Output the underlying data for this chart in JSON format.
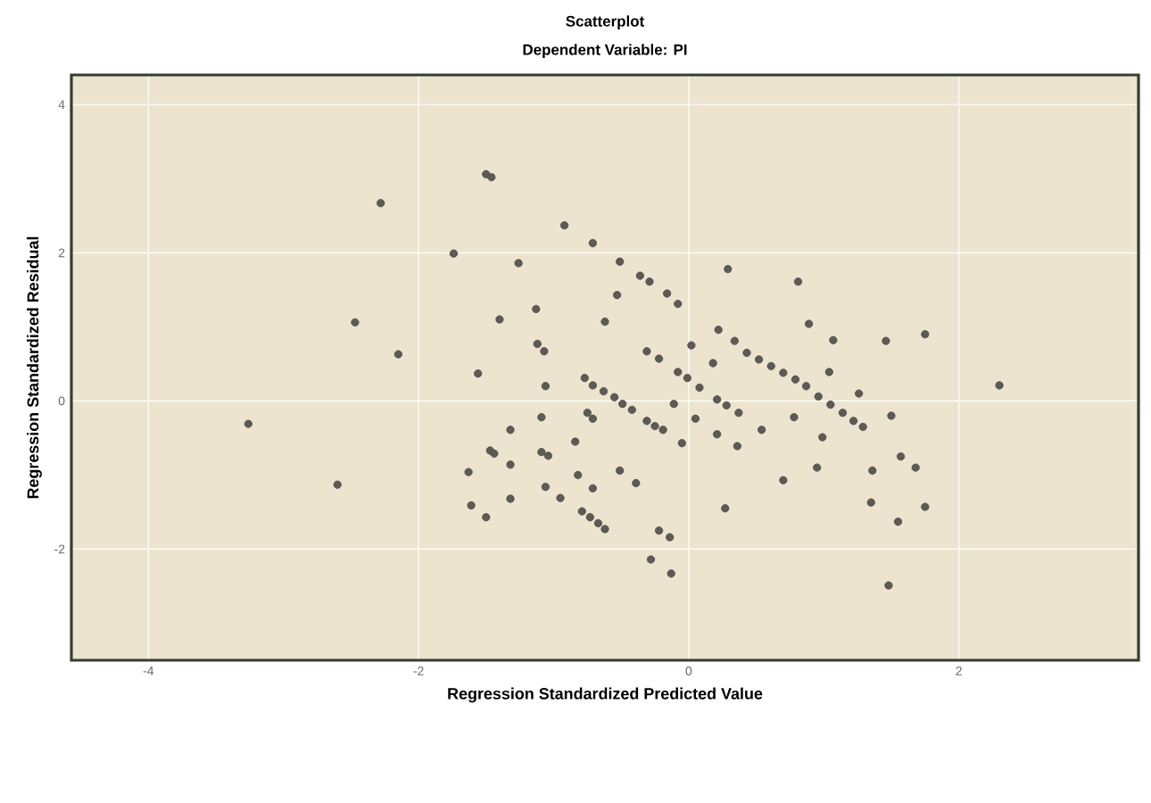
{
  "chart_data": {
    "type": "scatter",
    "title": "Scatterplot",
    "subtitle": "Dependent Variable: PI",
    "xlabel": "Regression Standardized Predicted Value",
    "ylabel": "Regression Standardized Residual",
    "xlim": [
      -4.57,
      3.33
    ],
    "ylim": [
      -3.5,
      4.4
    ],
    "xticks": [
      -4,
      -2,
      0,
      2
    ],
    "yticks": [
      -2,
      0,
      2,
      4
    ],
    "grid": true,
    "marker": "circle",
    "series": [
      {
        "color": "#5e5a55",
        "x": [
          -3.26,
          -2.6,
          -2.47,
          -2.28,
          -2.15,
          -1.74,
          -1.56,
          -1.5,
          -1.46,
          -1.4,
          -1.26,
          -1.32,
          -1.47,
          -1.44,
          -1.63,
          -1.32,
          -1.32,
          -1.61,
          -1.5,
          -1.13,
          -1.12,
          -1.07,
          -1.06,
          -1.09,
          -1.09,
          -1.04,
          -1.06,
          -0.92,
          -0.71,
          -0.51,
          -0.36,
          -0.29,
          -0.16,
          -0.08,
          -0.53,
          -0.62,
          0.29,
          0.81,
          0.89,
          1.07,
          1.46,
          1.75,
          2.3,
          0.22,
          0.34,
          0.43,
          0.52,
          0.61,
          0.7,
          0.79,
          0.87,
          0.96,
          1.05,
          1.14,
          1.22,
          1.29,
          1.04,
          1.26,
          1.5,
          0.78,
          0.99,
          0.95,
          0.7,
          1.36,
          1.57,
          1.68,
          1.35,
          1.55,
          1.75,
          1.48,
          0.27,
          0.02,
          0.18,
          -0.31,
          -0.22,
          -0.08,
          -0.01,
          0.08,
          0.21,
          0.28,
          0.37,
          0.54,
          -0.11,
          0.05,
          -0.05,
          0.21,
          0.36,
          -0.77,
          -0.71,
          -0.63,
          -0.55,
          -0.49,
          -0.42,
          -0.75,
          -0.71,
          -0.31,
          -0.25,
          -0.19,
          -0.84,
          -0.82,
          -0.71,
          -0.51,
          -0.39,
          -0.95,
          -0.79,
          -0.73,
          -0.67,
          -0.62,
          -0.22,
          -0.14,
          -0.28,
          -0.13
        ],
        "values": [
          -0.31,
          -1.13,
          1.06,
          2.67,
          0.63,
          1.99,
          0.37,
          3.06,
          3.02,
          1.1,
          1.86,
          -0.39,
          -0.67,
          -0.71,
          -0.96,
          -0.86,
          -1.32,
          -1.41,
          -1.57,
          1.24,
          0.77,
          0.67,
          0.2,
          -0.22,
          -0.69,
          -0.74,
          -1.16,
          2.37,
          2.13,
          1.88,
          1.69,
          1.61,
          1.45,
          1.31,
          1.43,
          1.07,
          1.78,
          1.61,
          1.04,
          0.82,
          0.81,
          0.9,
          0.21,
          0.96,
          0.81,
          0.65,
          0.56,
          0.47,
          0.38,
          0.29,
          0.2,
          0.06,
          -0.05,
          -0.16,
          -0.27,
          -0.35,
          0.39,
          0.1,
          -0.2,
          -0.22,
          -0.49,
          -0.9,
          -1.07,
          -0.94,
          -0.75,
          -0.9,
          -1.37,
          -1.63,
          -1.43,
          -2.49,
          -1.45,
          0.75,
          0.51,
          0.67,
          0.57,
          0.39,
          0.31,
          0.18,
          0.02,
          -0.06,
          -0.16,
          -0.39,
          -0.04,
          -0.24,
          -0.57,
          -0.45,
          -0.61,
          0.31,
          0.21,
          0.13,
          0.05,
          -0.04,
          -0.12,
          -0.16,
          -0.24,
          -0.27,
          -0.34,
          -0.39,
          -0.55,
          -1.0,
          -1.18,
          -0.94,
          -1.11,
          -1.31,
          -1.49,
          -1.57,
          -1.65,
          -1.73,
          -1.75,
          -1.84,
          -2.14,
          -2.33
        ]
      }
    ]
  }
}
